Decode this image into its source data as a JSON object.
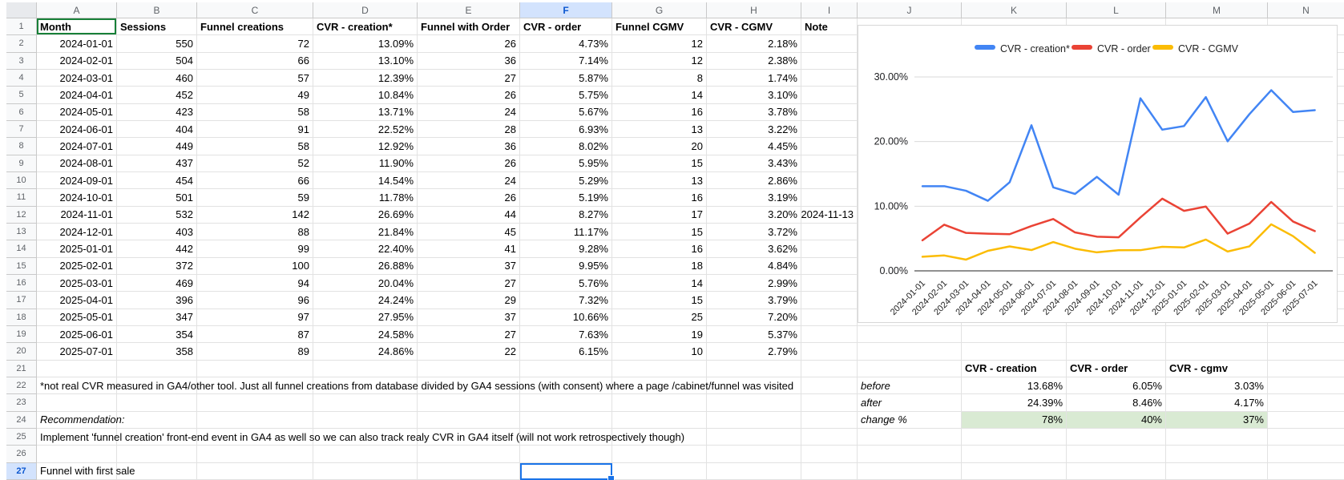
{
  "sheet": {
    "column_letters": [
      "A",
      "B",
      "C",
      "D",
      "E",
      "F",
      "G",
      "H",
      "I",
      "J",
      "K",
      "L",
      "M",
      "N"
    ],
    "selected_column": "F",
    "selected_row": 27,
    "selected_cell": "F27",
    "collaborator_cell": "A1",
    "table": {
      "headers": [
        "Month",
        "Sessions",
        "Funnel creations",
        "CVR - creation*",
        "Funnel with Order",
        "CVR - order",
        "Funnel CGMV",
        "CVR - CGMV",
        "Note"
      ],
      "rows": [
        [
          "2024-01-01",
          "550",
          "72",
          "13.09%",
          "26",
          "4.73%",
          "12",
          "2.18%",
          ""
        ],
        [
          "2024-02-01",
          "504",
          "66",
          "13.10%",
          "36",
          "7.14%",
          "12",
          "2.38%",
          ""
        ],
        [
          "2024-03-01",
          "460",
          "57",
          "12.39%",
          "27",
          "5.87%",
          "8",
          "1.74%",
          ""
        ],
        [
          "2024-04-01",
          "452",
          "49",
          "10.84%",
          "26",
          "5.75%",
          "14",
          "3.10%",
          ""
        ],
        [
          "2024-05-01",
          "423",
          "58",
          "13.71%",
          "24",
          "5.67%",
          "16",
          "3.78%",
          ""
        ],
        [
          "2024-06-01",
          "404",
          "91",
          "22.52%",
          "28",
          "6.93%",
          "13",
          "3.22%",
          ""
        ],
        [
          "2024-07-01",
          "449",
          "58",
          "12.92%",
          "36",
          "8.02%",
          "20",
          "4.45%",
          ""
        ],
        [
          "2024-08-01",
          "437",
          "52",
          "11.90%",
          "26",
          "5.95%",
          "15",
          "3.43%",
          ""
        ],
        [
          "2024-09-01",
          "454",
          "66",
          "14.54%",
          "24",
          "5.29%",
          "13",
          "2.86%",
          ""
        ],
        [
          "2024-10-01",
          "501",
          "59",
          "11.78%",
          "26",
          "5.19%",
          "16",
          "3.19%",
          ""
        ],
        [
          "2024-11-01",
          "532",
          "142",
          "26.69%",
          "44",
          "8.27%",
          "17",
          "3.20%",
          "2024-11-13"
        ],
        [
          "2024-12-01",
          "403",
          "88",
          "21.84%",
          "45",
          "11.17%",
          "15",
          "3.72%",
          ""
        ],
        [
          "2025-01-01",
          "442",
          "99",
          "22.40%",
          "41",
          "9.28%",
          "16",
          "3.62%",
          ""
        ],
        [
          "2025-02-01",
          "372",
          "100",
          "26.88%",
          "37",
          "9.95%",
          "18",
          "4.84%",
          ""
        ],
        [
          "2025-03-01",
          "469",
          "94",
          "20.04%",
          "27",
          "5.76%",
          "14",
          "2.99%",
          ""
        ],
        [
          "2025-04-01",
          "396",
          "96",
          "24.24%",
          "29",
          "7.32%",
          "15",
          "3.79%",
          ""
        ],
        [
          "2025-05-01",
          "347",
          "97",
          "27.95%",
          "37",
          "10.66%",
          "25",
          "7.20%",
          ""
        ],
        [
          "2025-06-01",
          "354",
          "87",
          "24.58%",
          "27",
          "7.63%",
          "19",
          "5.37%",
          ""
        ],
        [
          "2025-07-01",
          "358",
          "89",
          "24.86%",
          "22",
          "6.15%",
          "10",
          "2.79%",
          ""
        ]
      ]
    },
    "annotations": {
      "footnote": "*not real CVR measured in GA4/other tool. Just all funnel creations from database divided by GA4 sessions (with consent) where a page /cabinet/funnel was visited",
      "recommendation_label": "Recommendation:",
      "recommendation_text": "Implement 'funnel creation' front-end event in GA4 as well so we can also track realy CVR in GA4 itself (will not work retrospectively though)",
      "bottom_label": "Funnel with first sale"
    },
    "summary": {
      "col_headers": [
        "CVR - creation",
        "CVR - order",
        "CVR - cgmv"
      ],
      "rows": [
        {
          "label": "before",
          "values": [
            "13.68%",
            "6.05%",
            "3.03%"
          ],
          "highlight": false
        },
        {
          "label": "after",
          "values": [
            "24.39%",
            "8.46%",
            "4.17%"
          ],
          "highlight": false
        },
        {
          "label": "change %",
          "values": [
            "78%",
            "40%",
            "37%"
          ],
          "highlight": true
        }
      ]
    },
    "colors": {
      "selection_accent": "#1a73e8",
      "selected_header_bg": "#d3e3fd",
      "selected_header_text": "#0b57d0",
      "collaborator_presence": "#188038",
      "summary_highlight_bg": "#d9ead3"
    }
  },
  "chart_data": {
    "type": "line",
    "x": [
      "2024-01-01",
      "2024-02-01",
      "2024-03-01",
      "2024-04-01",
      "2024-05-01",
      "2024-06-01",
      "2024-07-01",
      "2024-08-01",
      "2024-09-01",
      "2024-10-01",
      "2024-11-01",
      "2024-12-01",
      "2025-01-01",
      "2025-02-01",
      "2025-03-01",
      "2025-04-01",
      "2025-05-01",
      "2025-06-01",
      "2025-07-01"
    ],
    "series": [
      {
        "name": "CVR - creation*",
        "color": "#4285f4",
        "values": [
          13.09,
          13.1,
          12.39,
          10.84,
          13.71,
          22.52,
          12.92,
          11.9,
          14.54,
          11.78,
          26.69,
          21.84,
          22.4,
          26.88,
          20.04,
          24.24,
          27.95,
          24.58,
          24.86
        ]
      },
      {
        "name": "CVR - order",
        "color": "#ea4335",
        "values": [
          4.73,
          7.14,
          5.87,
          5.75,
          5.67,
          6.93,
          8.02,
          5.95,
          5.29,
          5.19,
          8.27,
          11.17,
          9.28,
          9.95,
          5.76,
          7.32,
          10.66,
          7.63,
          6.15
        ]
      },
      {
        "name": "CVR - CGMV",
        "color": "#fbbc04",
        "values": [
          2.18,
          2.38,
          1.74,
          3.1,
          3.78,
          3.22,
          4.45,
          3.43,
          2.86,
          3.19,
          3.2,
          3.72,
          3.62,
          4.84,
          2.99,
          3.79,
          7.2,
          5.37,
          2.79
        ]
      }
    ],
    "y_ticks": [
      "0.00%",
      "10.00%",
      "20.00%",
      "30.00%"
    ],
    "ylim": [
      0,
      33
    ],
    "grid": true,
    "legend_position": "top",
    "title": ""
  }
}
